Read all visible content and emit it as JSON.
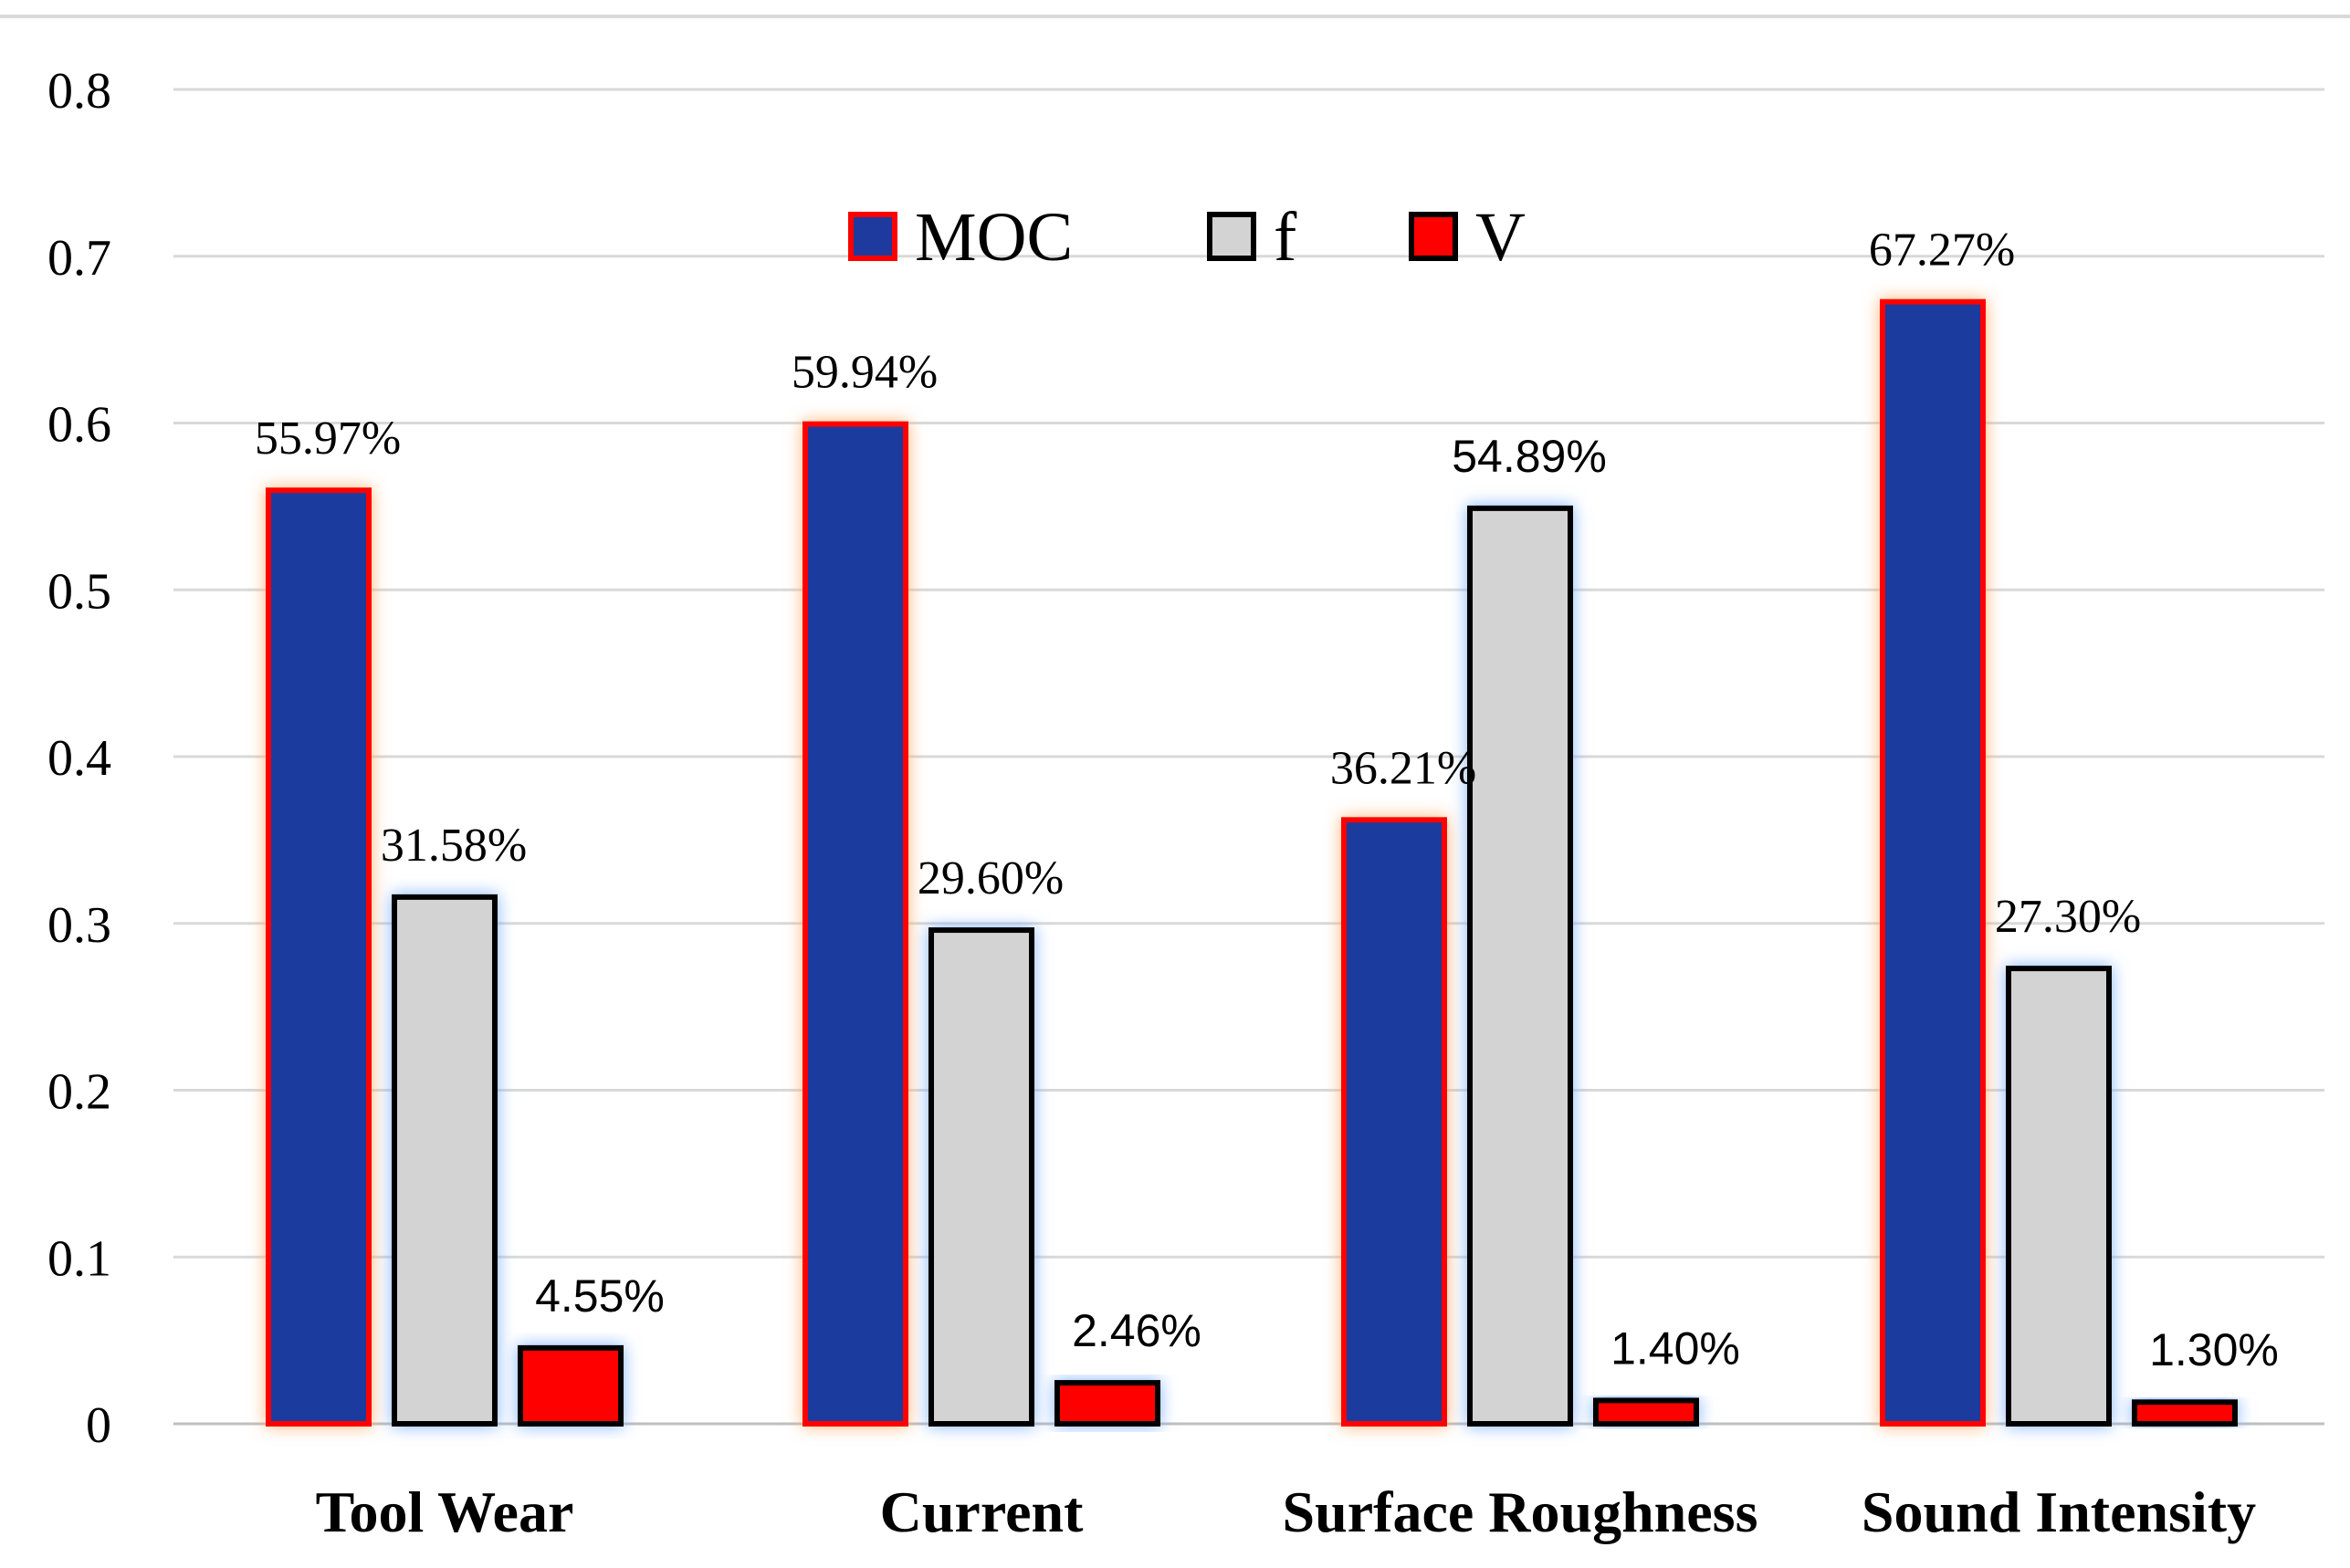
{
  "chart_data": {
    "type": "bar",
    "title": "",
    "xlabel": "",
    "ylabel": "",
    "ylim": [
      0,
      0.8
    ],
    "yticks": [
      "0",
      "0.1",
      "0.2",
      "0.3",
      "0.4",
      "0.5",
      "0.6",
      "0.7",
      "0.8"
    ],
    "grid": true,
    "legend_position": "top-center",
    "categories": [
      "Tool Wear",
      "Current",
      "Surface Roughness",
      "Sound Intensity"
    ],
    "series": [
      {
        "name": "MOC",
        "color": "#1f3a9e",
        "border": "#ff0000",
        "glow": "#ffb070",
        "values": [
          0.5597,
          0.5994,
          0.3621,
          0.6727
        ],
        "labels": [
          "55.97%",
          "59.94%",
          "36.21%",
          "67.27%"
        ]
      },
      {
        "name": "f",
        "color": "#d3d3d3",
        "border": "#000000",
        "glow": "#7fb2ff",
        "values": [
          0.3158,
          0.296,
          0.5489,
          0.273
        ],
        "labels": [
          "31.58%",
          "29.60%",
          "54.89%",
          "27.30%"
        ]
      },
      {
        "name": "V",
        "color": "#ff0000",
        "border": "#000000",
        "glow": "#7fb2ff",
        "values": [
          0.0455,
          0.0246,
          0.014,
          0.013
        ],
        "labels": [
          "4.55%",
          "2.46%",
          "1.40%",
          "1.30%"
        ]
      }
    ]
  }
}
